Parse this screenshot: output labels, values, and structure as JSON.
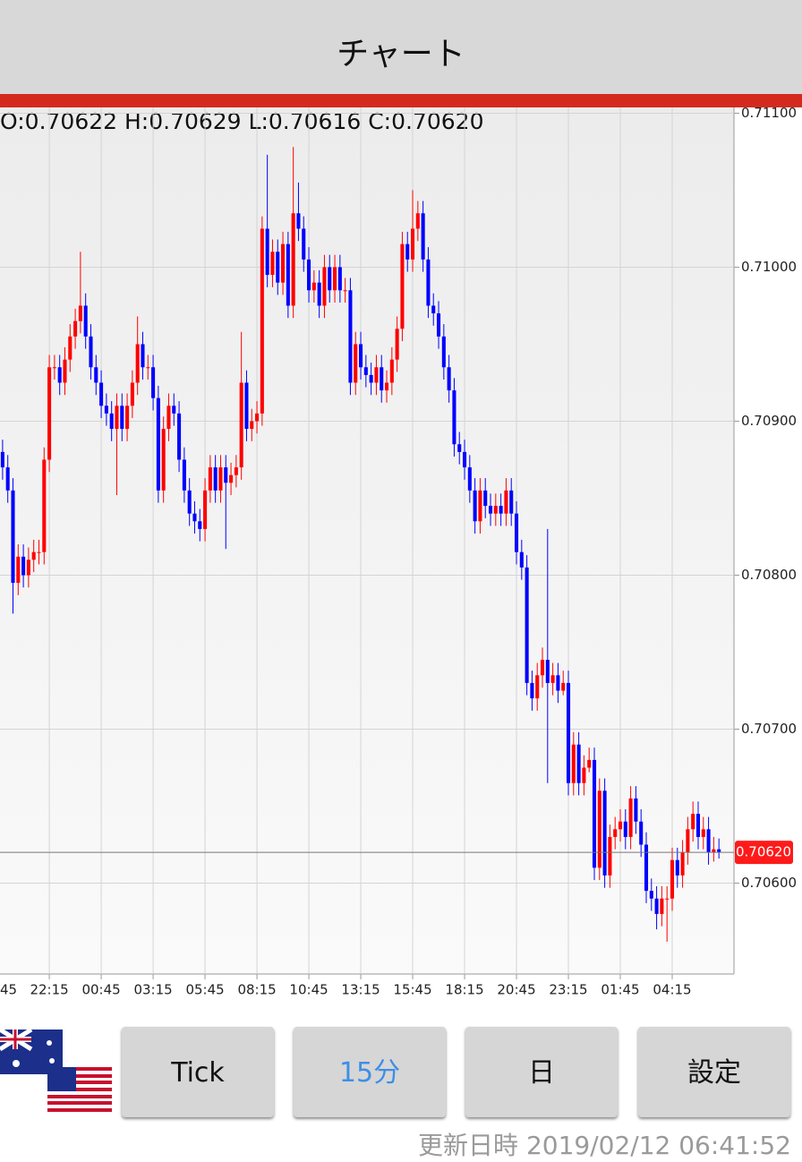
{
  "header": {
    "title": "チャート"
  },
  "chart_data": {
    "type": "candlestick",
    "ohlc_label": "O:0.70622 H:0.70629 L:0.70616 C:0.70620",
    "up_color": "#ff0000",
    "down_color": "#0000ff",
    "grid": true,
    "xlim": [
      -0.5,
      140.9
    ],
    "ylim": [
      0.70541,
      0.71102
    ],
    "xticks": [
      {
        "value": -1,
        "label": "45"
      },
      {
        "value": 9,
        "label": "22:15"
      },
      {
        "value": 19,
        "label": "00:45"
      },
      {
        "value": 29,
        "label": "03:15"
      },
      {
        "value": 39,
        "label": "05:45"
      },
      {
        "value": 49,
        "label": "08:15"
      },
      {
        "value": 59,
        "label": "10:45"
      },
      {
        "value": 69,
        "label": "13:15"
      },
      {
        "value": 79,
        "label": "15:45"
      },
      {
        "value": 89,
        "label": "18:15"
      },
      {
        "value": 99,
        "label": "20:45"
      },
      {
        "value": 109,
        "label": "23:15"
      },
      {
        "value": 119,
        "label": "01:45"
      },
      {
        "value": 129,
        "label": "04:15"
      }
    ],
    "yticks": [
      {
        "value": 0.711,
        "label": "0.71100"
      },
      {
        "value": 0.71,
        "label": "0.71000"
      },
      {
        "value": 0.709,
        "label": "0.70900"
      },
      {
        "value": 0.708,
        "label": "0.70800"
      },
      {
        "value": 0.707,
        "label": "0.70700"
      },
      {
        "value": 0.706,
        "label": "0.70600"
      }
    ],
    "current_price": {
      "value": 0.7062,
      "label": "0.70620"
    },
    "candles": [
      [
        0.7088,
        0.70888,
        0.70862,
        0.7087
      ],
      [
        0.7087,
        0.70878,
        0.70847,
        0.70855
      ],
      [
        0.70855,
        0.70863,
        0.70775,
        0.70795
      ],
      [
        0.70795,
        0.7082,
        0.70787,
        0.70812
      ],
      [
        0.70812,
        0.7082,
        0.70792,
        0.708
      ],
      [
        0.708,
        0.70818,
        0.70792,
        0.7081
      ],
      [
        0.7081,
        0.70823,
        0.70802,
        0.70815
      ],
      [
        0.70815,
        0.70823,
        0.70807,
        0.70815
      ],
      [
        0.70815,
        0.70883,
        0.70807,
        0.70875
      ],
      [
        0.70875,
        0.70943,
        0.70867,
        0.70935
      ],
      [
        0.70935,
        0.70943,
        0.70927,
        0.70935
      ],
      [
        0.70935,
        0.70943,
        0.70917,
        0.70925
      ],
      [
        0.70925,
        0.70948,
        0.70917,
        0.7094
      ],
      [
        0.7094,
        0.70963,
        0.70932,
        0.70955
      ],
      [
        0.70955,
        0.70973,
        0.70947,
        0.70965
      ],
      [
        0.70965,
        0.7101,
        0.70957,
        0.70975
      ],
      [
        0.70975,
        0.70983,
        0.70947,
        0.70955
      ],
      [
        0.70955,
        0.70963,
        0.70927,
        0.70935
      ],
      [
        0.70935,
        0.70943,
        0.70917,
        0.70925
      ],
      [
        0.70925,
        0.70933,
        0.70902,
        0.7091
      ],
      [
        0.7091,
        0.70918,
        0.70897,
        0.70905
      ],
      [
        0.70905,
        0.70913,
        0.70887,
        0.70895
      ],
      [
        0.70895,
        0.70918,
        0.70852,
        0.7091
      ],
      [
        0.7091,
        0.70918,
        0.70887,
        0.70895
      ],
      [
        0.70895,
        0.70918,
        0.70887,
        0.7091
      ],
      [
        0.7091,
        0.70933,
        0.70902,
        0.70925
      ],
      [
        0.70925,
        0.70968,
        0.70917,
        0.7095
      ],
      [
        0.7095,
        0.70958,
        0.70927,
        0.70935
      ],
      [
        0.70935,
        0.70943,
        0.70927,
        0.70935
      ],
      [
        0.70935,
        0.70943,
        0.70907,
        0.70915
      ],
      [
        0.70915,
        0.70923,
        0.70847,
        0.70855
      ],
      [
        0.70855,
        0.70903,
        0.70847,
        0.70895
      ],
      [
        0.70895,
        0.70918,
        0.70887,
        0.7091
      ],
      [
        0.7091,
        0.70918,
        0.70897,
        0.70905
      ],
      [
        0.70905,
        0.70913,
        0.70867,
        0.70875
      ],
      [
        0.70875,
        0.70883,
        0.70847,
        0.70855
      ],
      [
        0.70855,
        0.70863,
        0.70832,
        0.7084
      ],
      [
        0.7084,
        0.70848,
        0.70827,
        0.70835
      ],
      [
        0.70835,
        0.70843,
        0.70822,
        0.7083
      ],
      [
        0.7083,
        0.70863,
        0.70822,
        0.70855
      ],
      [
        0.70855,
        0.70878,
        0.70847,
        0.7087
      ],
      [
        0.7087,
        0.70878,
        0.70847,
        0.70855
      ],
      [
        0.70855,
        0.70878,
        0.70847,
        0.7087
      ],
      [
        0.7087,
        0.70878,
        0.70817,
        0.7086
      ],
      [
        0.7086,
        0.70873,
        0.70852,
        0.70865
      ],
      [
        0.70865,
        0.70878,
        0.70857,
        0.7087
      ],
      [
        0.7087,
        0.70958,
        0.70862,
        0.70925
      ],
      [
        0.70925,
        0.70933,
        0.70887,
        0.70895
      ],
      [
        0.70895,
        0.70908,
        0.70887,
        0.709
      ],
      [
        0.709,
        0.70913,
        0.70892,
        0.70905
      ],
      [
        0.70905,
        0.71033,
        0.70897,
        0.71025
      ],
      [
        0.71025,
        0.71073,
        0.70987,
        0.70995
      ],
      [
        0.70995,
        0.71018,
        0.70987,
        0.7101
      ],
      [
        0.7101,
        0.71018,
        0.70982,
        0.7099
      ],
      [
        0.7099,
        0.71023,
        0.70982,
        0.71015
      ],
      [
        0.71015,
        0.71023,
        0.70967,
        0.70975
      ],
      [
        0.70975,
        0.71078,
        0.70967,
        0.71035
      ],
      [
        0.71035,
        0.71055,
        0.71017,
        0.71025
      ],
      [
        0.71025,
        0.71033,
        0.70997,
        0.71005
      ],
      [
        0.71005,
        0.71013,
        0.70977,
        0.70985
      ],
      [
        0.70985,
        0.70998,
        0.70977,
        0.7099
      ],
      [
        0.7099,
        0.70998,
        0.70967,
        0.70975
      ],
      [
        0.70975,
        0.71008,
        0.70967,
        0.71
      ],
      [
        0.71,
        0.71008,
        0.70977,
        0.70985
      ],
      [
        0.70985,
        0.71008,
        0.70977,
        0.71
      ],
      [
        0.71,
        0.71008,
        0.70977,
        0.70985
      ],
      [
        0.70985,
        0.70993,
        0.70977,
        0.70985
      ],
      [
        0.70985,
        0.70993,
        0.70917,
        0.70925
      ],
      [
        0.70925,
        0.70958,
        0.70917,
        0.7095
      ],
      [
        0.7095,
        0.70958,
        0.70927,
        0.70935
      ],
      [
        0.70935,
        0.70943,
        0.70922,
        0.7093
      ],
      [
        0.7093,
        0.70938,
        0.70917,
        0.70925
      ],
      [
        0.70925,
        0.70943,
        0.70917,
        0.70935
      ],
      [
        0.70935,
        0.70943,
        0.70912,
        0.7092
      ],
      [
        0.7092,
        0.70933,
        0.70912,
        0.70925
      ],
      [
        0.70925,
        0.70948,
        0.70917,
        0.7094
      ],
      [
        0.7094,
        0.70968,
        0.70932,
        0.7096
      ],
      [
        0.7096,
        0.71023,
        0.70952,
        0.71015
      ],
      [
        0.71015,
        0.71023,
        0.70997,
        0.71005
      ],
      [
        0.71005,
        0.7105,
        0.70997,
        0.71025
      ],
      [
        0.71025,
        0.71043,
        0.71017,
        0.71035
      ],
      [
        0.71035,
        0.71043,
        0.70997,
        0.71005
      ],
      [
        0.71005,
        0.71013,
        0.70967,
        0.70975
      ],
      [
        0.70975,
        0.70983,
        0.70962,
        0.7097
      ],
      [
        0.7097,
        0.70978,
        0.70947,
        0.70955
      ],
      [
        0.70955,
        0.70963,
        0.70927,
        0.70935
      ],
      [
        0.70935,
        0.70943,
        0.70912,
        0.7092
      ],
      [
        0.7092,
        0.70928,
        0.70877,
        0.70885
      ],
      [
        0.70885,
        0.70893,
        0.70872,
        0.7088
      ],
      [
        0.7088,
        0.70888,
        0.70862,
        0.7087
      ],
      [
        0.7087,
        0.70878,
        0.70847,
        0.70855
      ],
      [
        0.70855,
        0.70863,
        0.70827,
        0.70835
      ],
      [
        0.70835,
        0.70863,
        0.70827,
        0.70855
      ],
      [
        0.70855,
        0.70863,
        0.70837,
        0.70845
      ],
      [
        0.70845,
        0.70853,
        0.70832,
        0.7084
      ],
      [
        0.7084,
        0.70853,
        0.70832,
        0.70845
      ],
      [
        0.70845,
        0.70853,
        0.70832,
        0.7084
      ],
      [
        0.7084,
        0.70863,
        0.70832,
        0.70855
      ],
      [
        0.70855,
        0.70863,
        0.70832,
        0.7084
      ],
      [
        0.7084,
        0.70848,
        0.70807,
        0.70815
      ],
      [
        0.70815,
        0.70823,
        0.70797,
        0.70805
      ],
      [
        0.70805,
        0.70813,
        0.70722,
        0.7073
      ],
      [
        0.7073,
        0.70738,
        0.70712,
        0.7072
      ],
      [
        0.7072,
        0.70743,
        0.70712,
        0.70735
      ],
      [
        0.70735,
        0.70753,
        0.70727,
        0.70745
      ],
      [
        0.70745,
        0.7083,
        0.70665,
        0.7073
      ],
      [
        0.7073,
        0.70743,
        0.70722,
        0.70735
      ],
      [
        0.70735,
        0.70743,
        0.70717,
        0.70725
      ],
      [
        0.70725,
        0.70738,
        0.70722,
        0.7073
      ],
      [
        0.7073,
        0.70738,
        0.70657,
        0.70665
      ],
      [
        0.70665,
        0.70698,
        0.70657,
        0.7069
      ],
      [
        0.7069,
        0.70698,
        0.70657,
        0.70665
      ],
      [
        0.70665,
        0.70683,
        0.70657,
        0.70675
      ],
      [
        0.70675,
        0.70688,
        0.70672,
        0.7068
      ],
      [
        0.7068,
        0.70688,
        0.70602,
        0.7061
      ],
      [
        0.7061,
        0.70668,
        0.70602,
        0.7066
      ],
      [
        0.7066,
        0.70668,
        0.70597,
        0.70605
      ],
      [
        0.70605,
        0.70638,
        0.70597,
        0.7063
      ],
      [
        0.7063,
        0.70643,
        0.70622,
        0.70635
      ],
      [
        0.70635,
        0.70648,
        0.70627,
        0.7064
      ],
      [
        0.7064,
        0.70648,
        0.70622,
        0.7063
      ],
      [
        0.7063,
        0.70663,
        0.70622,
        0.70655
      ],
      [
        0.70655,
        0.70663,
        0.70632,
        0.7064
      ],
      [
        0.7064,
        0.70648,
        0.70617,
        0.70625
      ],
      [
        0.70625,
        0.70633,
        0.70587,
        0.70595
      ],
      [
        0.70595,
        0.70603,
        0.70582,
        0.7059
      ],
      [
        0.7059,
        0.70598,
        0.7057,
        0.7058
      ],
      [
        0.7058,
        0.70598,
        0.70572,
        0.7059
      ],
      [
        0.7059,
        0.70598,
        0.70562,
        0.7059
      ],
      [
        0.7059,
        0.70623,
        0.70582,
        0.70615
      ],
      [
        0.70615,
        0.70623,
        0.70597,
        0.70605
      ],
      [
        0.70605,
        0.70628,
        0.70597,
        0.7062
      ],
      [
        0.7062,
        0.70643,
        0.70612,
        0.70635
      ],
      [
        0.70635,
        0.70653,
        0.70627,
        0.70645
      ],
      [
        0.70645,
        0.70653,
        0.70622,
        0.7063
      ],
      [
        0.7063,
        0.70643,
        0.70622,
        0.70635
      ],
      [
        0.70635,
        0.70643,
        0.70612,
        0.7062
      ],
      [
        0.7062,
        0.7063,
        0.70614,
        0.70622
      ],
      [
        0.70622,
        0.70629,
        0.70616,
        0.7062
      ]
    ]
  },
  "buttons": [
    "Tick",
    "15分",
    "日",
    "設定"
  ],
  "footer": {
    "updated": "更新日時 2019/02/12 06:41:52"
  }
}
